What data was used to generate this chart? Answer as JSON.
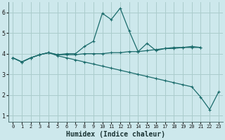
{
  "xlabel": "Humidex (Indice chaleur)",
  "background_color": "#cde8ec",
  "grid_color": "#aacccc",
  "line_color": "#1a6b6b",
  "xlim": [
    -0.5,
    23.5
  ],
  "ylim": [
    0.7,
    6.5
  ],
  "yticks": [
    1,
    2,
    3,
    4,
    5,
    6
  ],
  "xticks": [
    0,
    1,
    2,
    3,
    4,
    5,
    6,
    7,
    8,
    9,
    10,
    11,
    12,
    13,
    14,
    15,
    16,
    17,
    18,
    19,
    20,
    21,
    22,
    23
  ],
  "line1_x": [
    0,
    1,
    2,
    3,
    4,
    5,
    6,
    7,
    8,
    9,
    10,
    11,
    12,
    13,
    14,
    15,
    16,
    17,
    18,
    19,
    20,
    21
  ],
  "line1_y": [
    3.8,
    3.6,
    3.8,
    3.95,
    4.05,
    3.95,
    3.95,
    3.95,
    4.0,
    4.0,
    4.0,
    4.05,
    4.05,
    4.1,
    4.1,
    4.15,
    4.2,
    4.25,
    4.25,
    4.3,
    4.3,
    4.3
  ],
  "line2_x": [
    0,
    1,
    2,
    3,
    4,
    5,
    6,
    7,
    8,
    9,
    10,
    11,
    12,
    13,
    14,
    15,
    16,
    17,
    18,
    19,
    20,
    21
  ],
  "line2_y": [
    3.8,
    3.6,
    3.8,
    3.95,
    4.05,
    3.95,
    4.0,
    4.0,
    4.35,
    4.6,
    5.95,
    5.65,
    6.2,
    5.1,
    4.1,
    4.5,
    4.15,
    4.25,
    4.3,
    4.3,
    4.35,
    4.3
  ],
  "line3_x": [
    0,
    1,
    2,
    3,
    4,
    5,
    6,
    7,
    8,
    9,
    10,
    11,
    12,
    13,
    14,
    15,
    16,
    17,
    18,
    19,
    20,
    21,
    22,
    23
  ],
  "line3_y": [
    3.8,
    3.6,
    3.8,
    3.95,
    4.05,
    3.9,
    3.8,
    3.7,
    3.6,
    3.5,
    3.4,
    3.3,
    3.2,
    3.1,
    3.0,
    2.9,
    2.8,
    2.7,
    2.6,
    2.5,
    2.4,
    1.9,
    1.3,
    2.15
  ],
  "xlabel_fontsize": 7,
  "tick_fontsize": 5,
  "ytick_fontsize": 6
}
